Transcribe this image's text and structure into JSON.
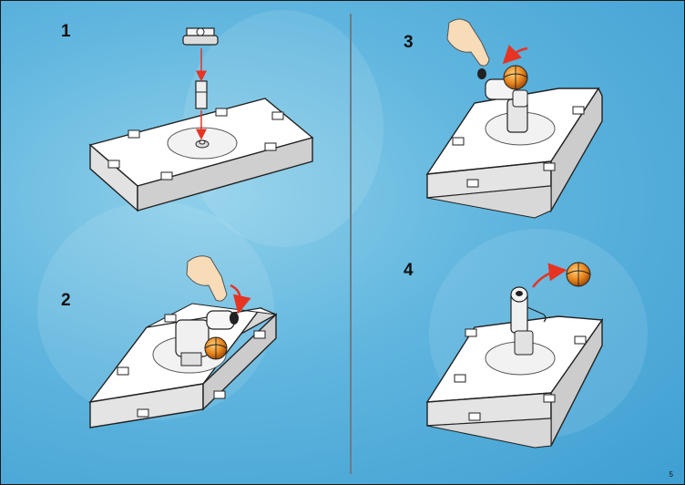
{
  "steps": [
    {
      "number": "1"
    },
    {
      "number": "2"
    },
    {
      "number": "3"
    },
    {
      "number": "4"
    }
  ],
  "page_number": "5",
  "colors": {
    "background": "#5fb5de",
    "plate": "#ffffff",
    "arrow": "#e63322",
    "ball": "#e8861e"
  }
}
